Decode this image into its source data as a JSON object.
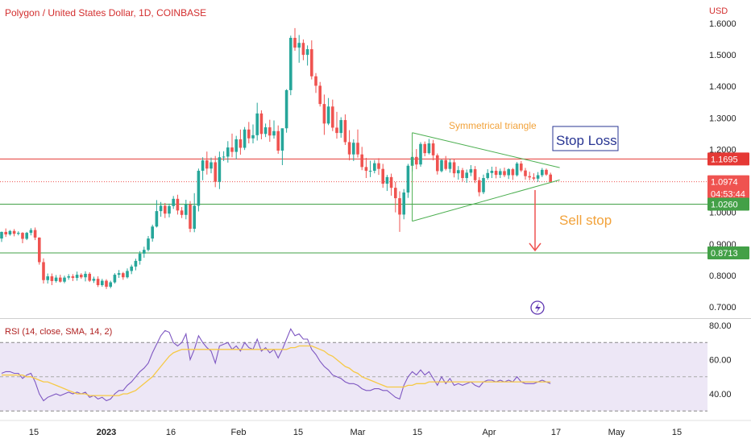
{
  "header": {
    "title": "Polygon / United States Dollar, 1D, COINBASE",
    "currency": "USD"
  },
  "colors": {
    "up": "#26a69a",
    "down": "#ef5350",
    "stop_loss_line": "#e53935",
    "support_line": "#43a047",
    "triangle": "#4caf50",
    "rsi_line": "#7e57c2",
    "rsi_ma": "#f6c945",
    "rsi_band": "#ede7f6",
    "annotation_orange": "#f2a23a",
    "annotation_navy": "#283593"
  },
  "chart_data": [
    {
      "type": "candlestick",
      "title": "Polygon / United States Dollar, 1D, COINBASE",
      "x_ticks": [
        "15",
        "2023",
        "16",
        "Feb",
        "15",
        "Mar",
        "15",
        "Apr",
        "17",
        "May",
        "15"
      ],
      "y_ticks": [
        "1.6000",
        "1.5000",
        "1.4000",
        "1.3000",
        "1.2000",
        "1.1000",
        "1.0000",
        "0.9000",
        "0.8000",
        "0.7000"
      ],
      "ylim": [
        0.69,
        1.63
      ],
      "log_scale": false,
      "grid": false,
      "price_tags": [
        {
          "value": "1.1695",
          "color": "#e53935"
        },
        {
          "value": "1.0974",
          "sub": "04:53:44",
          "color": "#ef5350"
        },
        {
          "value": "1.0260",
          "color": "#43a047"
        },
        {
          "value": "0.8713",
          "color": "#43a047"
        }
      ],
      "levels": [
        {
          "name": "stop-loss-level",
          "value": 1.1695
        },
        {
          "name": "support-level",
          "value": 1.026
        },
        {
          "name": "target-level",
          "value": 0.8713
        }
      ],
      "last_price": 1.0974,
      "annotations": {
        "triangle_label": "Symmetrical triangle",
        "stop_loss_label": "Stop Loss",
        "sell_stop_label": "Sell stop"
      },
      "candles": [
        [
          0.917,
          0.939,
          0.906,
          0.938
        ],
        [
          0.938,
          0.949,
          0.922,
          0.93
        ],
        [
          0.93,
          0.944,
          0.926,
          0.941
        ],
        [
          0.941,
          0.947,
          0.924,
          0.932
        ],
        [
          0.932,
          0.94,
          0.927,
          0.935
        ],
        [
          0.935,
          0.937,
          0.902,
          0.916
        ],
        [
          0.916,
          0.938,
          0.912,
          0.935
        ],
        [
          0.935,
          0.95,
          0.927,
          0.944
        ],
        [
          0.944,
          0.952,
          0.912,
          0.92
        ],
        [
          0.92,
          0.921,
          0.834,
          0.842
        ],
        [
          0.842,
          0.854,
          0.774,
          0.785
        ],
        [
          0.785,
          0.806,
          0.774,
          0.797
        ],
        [
          0.797,
          0.806,
          0.769,
          0.782
        ],
        [
          0.782,
          0.801,
          0.777,
          0.793
        ],
        [
          0.793,
          0.802,
          0.777,
          0.78
        ],
        [
          0.78,
          0.799,
          0.775,
          0.793
        ],
        [
          0.793,
          0.804,
          0.786,
          0.797
        ],
        [
          0.797,
          0.804,
          0.782,
          0.792
        ],
        [
          0.792,
          0.812,
          0.783,
          0.802
        ],
        [
          0.802,
          0.807,
          0.789,
          0.794
        ],
        [
          0.794,
          0.813,
          0.781,
          0.805
        ],
        [
          0.805,
          0.81,
          0.779,
          0.783
        ],
        [
          0.783,
          0.796,
          0.776,
          0.789
        ],
        [
          0.789,
          0.797,
          0.763,
          0.769
        ],
        [
          0.769,
          0.789,
          0.764,
          0.783
        ],
        [
          0.783,
          0.788,
          0.757,
          0.764
        ],
        [
          0.764,
          0.783,
          0.759,
          0.778
        ],
        [
          0.778,
          0.807,
          0.774,
          0.802
        ],
        [
          0.802,
          0.817,
          0.792,
          0.807
        ],
        [
          0.807,
          0.811,
          0.786,
          0.794
        ],
        [
          0.794,
          0.822,
          0.79,
          0.814
        ],
        [
          0.814,
          0.834,
          0.804,
          0.828
        ],
        [
          0.828,
          0.853,
          0.816,
          0.846
        ],
        [
          0.846,
          0.877,
          0.834,
          0.869
        ],
        [
          0.869,
          0.891,
          0.856,
          0.881
        ],
        [
          0.881,
          0.925,
          0.876,
          0.917
        ],
        [
          0.917,
          0.961,
          0.907,
          0.955
        ],
        [
          0.955,
          1.039,
          0.952,
          1.004
        ],
        [
          1.004,
          1.033,
          0.986,
          1.021
        ],
        [
          1.021,
          1.03,
          0.982,
          0.996
        ],
        [
          0.996,
          1.028,
          0.984,
          1.02
        ],
        [
          1.02,
          1.052,
          1.011,
          1.043
        ],
        [
          1.043,
          1.056,
          0.993,
          1.006
        ],
        [
          1.006,
          1.017,
          0.982,
          0.992
        ],
        [
          0.992,
          1.04,
          0.978,
          1.025
        ],
        [
          1.025,
          1.036,
          0.937,
          0.948
        ],
        [
          0.948,
          1.061,
          0.937,
          1.021
        ],
        [
          1.021,
          1.139,
          1.003,
          1.132
        ],
        [
          1.132,
          1.175,
          1.102,
          1.165
        ],
        [
          1.165,
          1.193,
          1.12,
          1.139
        ],
        [
          1.139,
          1.174,
          1.124,
          1.159
        ],
        [
          1.159,
          1.179,
          1.08,
          1.097
        ],
        [
          1.097,
          1.193,
          1.074,
          1.175
        ],
        [
          1.175,
          1.194,
          1.163,
          1.177
        ],
        [
          1.177,
          1.226,
          1.158,
          1.206
        ],
        [
          1.206,
          1.25,
          1.175,
          1.192
        ],
        [
          1.192,
          1.243,
          1.169,
          1.232
        ],
        [
          1.232,
          1.263,
          1.183,
          1.205
        ],
        [
          1.205,
          1.271,
          1.198,
          1.263
        ],
        [
          1.263,
          1.287,
          1.219,
          1.235
        ],
        [
          1.235,
          1.279,
          1.219,
          1.245
        ],
        [
          1.245,
          1.348,
          1.228,
          1.314
        ],
        [
          1.314,
          1.324,
          1.232,
          1.249
        ],
        [
          1.249,
          1.282,
          1.239,
          1.27
        ],
        [
          1.27,
          1.294,
          1.224,
          1.244
        ],
        [
          1.244,
          1.292,
          1.234,
          1.258
        ],
        [
          1.258,
          1.276,
          1.186,
          1.196
        ],
        [
          1.196,
          1.263,
          1.15,
          1.267
        ],
        [
          1.267,
          1.391,
          1.253,
          1.388
        ],
        [
          1.388,
          1.561,
          1.372,
          1.554
        ],
        [
          1.554,
          1.585,
          1.513,
          1.523
        ],
        [
          1.523,
          1.563,
          1.475,
          1.538
        ],
        [
          1.538,
          1.549,
          1.483,
          1.5
        ],
        [
          1.5,
          1.53,
          1.466,
          1.518
        ],
        [
          1.518,
          1.546,
          1.422,
          1.432
        ],
        [
          1.432,
          1.442,
          1.379,
          1.402
        ],
        [
          1.402,
          1.414,
          1.336,
          1.344
        ],
        [
          1.344,
          1.374,
          1.246,
          1.282
        ],
        [
          1.282,
          1.363,
          1.277,
          1.336
        ],
        [
          1.336,
          1.358,
          1.258,
          1.269
        ],
        [
          1.269,
          1.319,
          1.234,
          1.252
        ],
        [
          1.252,
          1.302,
          1.237,
          1.293
        ],
        [
          1.293,
          1.311,
          1.214,
          1.223
        ],
        [
          1.223,
          1.261,
          1.165,
          1.184
        ],
        [
          1.184,
          1.232,
          1.163,
          1.221
        ],
        [
          1.221,
          1.263,
          1.174,
          1.184
        ],
        [
          1.184,
          1.208,
          1.134,
          1.144
        ],
        [
          1.144,
          1.173,
          1.109,
          1.132
        ],
        [
          1.132,
          1.164,
          1.112,
          1.132
        ],
        [
          1.132,
          1.166,
          1.124,
          1.156
        ],
        [
          1.156,
          1.172,
          1.119,
          1.138
        ],
        [
          1.138,
          1.154,
          1.078,
          1.091
        ],
        [
          1.091,
          1.119,
          1.068,
          1.112
        ],
        [
          1.112,
          1.123,
          1.053,
          1.078
        ],
        [
          1.078,
          1.097,
          1.0,
          1.045
        ],
        [
          1.045,
          1.067,
          0.938,
          0.993
        ],
        [
          0.993,
          1.074,
          0.978,
          1.063
        ],
        [
          1.063,
          1.154,
          1.046,
          1.148
        ],
        [
          1.148,
          1.191,
          1.13,
          1.176
        ],
        [
          1.176,
          1.201,
          1.137,
          1.152
        ],
        [
          1.152,
          1.223,
          1.145,
          1.217
        ],
        [
          1.217,
          1.225,
          1.178,
          1.188
        ],
        [
          1.188,
          1.233,
          1.184,
          1.219
        ],
        [
          1.219,
          1.23,
          1.165,
          1.181
        ],
        [
          1.181,
          1.187,
          1.12,
          1.131
        ],
        [
          1.131,
          1.168,
          1.127,
          1.166
        ],
        [
          1.166,
          1.179,
          1.133,
          1.138
        ],
        [
          1.138,
          1.17,
          1.126,
          1.159
        ],
        [
          1.159,
          1.168,
          1.111,
          1.124
        ],
        [
          1.124,
          1.147,
          1.104,
          1.134
        ],
        [
          1.134,
          1.141,
          1.098,
          1.109
        ],
        [
          1.109,
          1.136,
          1.094,
          1.126
        ],
        [
          1.126,
          1.15,
          1.115,
          1.137
        ],
        [
          1.137,
          1.147,
          1.093,
          1.102
        ],
        [
          1.102,
          1.112,
          1.051,
          1.064
        ],
        [
          1.064,
          1.12,
          1.058,
          1.109
        ],
        [
          1.109,
          1.137,
          1.104,
          1.125
        ],
        [
          1.125,
          1.145,
          1.109,
          1.132
        ],
        [
          1.132,
          1.145,
          1.108,
          1.119
        ],
        [
          1.119,
          1.139,
          1.109,
          1.131
        ],
        [
          1.131,
          1.142,
          1.112,
          1.118
        ],
        [
          1.118,
          1.14,
          1.106,
          1.137
        ],
        [
          1.137,
          1.141,
          1.103,
          1.118
        ],
        [
          1.118,
          1.16,
          1.114,
          1.155
        ],
        [
          1.155,
          1.163,
          1.128,
          1.133
        ],
        [
          1.133,
          1.141,
          1.104,
          1.115
        ],
        [
          1.115,
          1.129,
          1.102,
          1.111
        ],
        [
          1.111,
          1.124,
          1.101,
          1.107
        ],
        [
          1.107,
          1.128,
          1.097,
          1.118
        ],
        [
          1.118,
          1.141,
          1.112,
          1.135
        ],
        [
          1.135,
          1.139,
          1.116,
          1.12
        ],
        [
          1.12,
          1.126,
          1.096,
          1.097
        ]
      ]
    },
    {
      "type": "line",
      "title": "RSI (14, close, SMA, 14, 2)",
      "y_ticks": [
        "80.00",
        "60.00",
        "40.00"
      ],
      "ylim": [
        30,
        82
      ],
      "band": [
        30,
        70
      ],
      "midline": 50,
      "series": [
        {
          "values": [
            52,
            53,
            53,
            52,
            52,
            49,
            51,
            52,
            47,
            40,
            36,
            38,
            39,
            40,
            39,
            40,
            41,
            40,
            41,
            40,
            41,
            38,
            39,
            37,
            38,
            36,
            37,
            40,
            42,
            42,
            45,
            47,
            50,
            53,
            55,
            58,
            64,
            69,
            74,
            77,
            76,
            70,
            68,
            70,
            75,
            60,
            66,
            74,
            70,
            67,
            65,
            58,
            68,
            69,
            70,
            66,
            68,
            65,
            70,
            67,
            66,
            72,
            65,
            67,
            64,
            66,
            61,
            66,
            72,
            78,
            74,
            75,
            72,
            72,
            66,
            63,
            59,
            56,
            54,
            51,
            50,
            49,
            47,
            46,
            46,
            45,
            43,
            42,
            42,
            43,
            43,
            42,
            42,
            40,
            38,
            37,
            45,
            50,
            53,
            51,
            54,
            51,
            53,
            49,
            45,
            50,
            46,
            49,
            45,
            46,
            45,
            46,
            47,
            45,
            44,
            47,
            48,
            48,
            47,
            48,
            47,
            48,
            47,
            50,
            47,
            46,
            46,
            46,
            47,
            48,
            47,
            46
          ]
        },
        {
          "values": [
            51,
            51,
            51,
            51,
            51,
            51,
            50,
            50,
            49,
            48,
            47,
            47,
            46,
            45,
            44,
            43,
            42,
            41,
            40,
            40,
            40,
            39,
            39,
            39,
            39,
            39,
            39,
            39,
            39,
            40,
            40,
            41,
            42,
            44,
            46,
            48,
            50,
            53,
            56,
            59,
            62,
            64,
            65,
            66,
            66,
            66,
            66,
            66,
            66,
            66,
            66,
            66,
            66,
            66,
            66,
            66,
            66,
            66,
            66,
            66,
            66,
            66,
            66,
            66,
            66,
            66,
            66,
            66,
            66,
            67,
            67,
            68,
            68,
            68,
            68,
            67,
            66,
            65,
            63,
            62,
            60,
            58,
            56,
            55,
            53,
            52,
            50,
            49,
            48,
            47,
            46,
            45,
            44,
            44,
            44,
            44,
            44,
            45,
            45,
            46,
            46,
            46,
            47,
            47,
            47,
            47,
            47,
            47,
            47,
            47,
            47,
            47,
            47,
            47,
            47,
            47,
            47,
            47,
            47,
            47,
            47,
            47,
            47,
            47,
            47,
            47,
            47,
            47,
            47,
            47,
            47,
            47
          ]
        }
      ],
      "x_ticks": [
        "15",
        "2023",
        "16",
        "Feb",
        "15",
        "Mar",
        "15",
        "Apr",
        "17",
        "May",
        "15"
      ]
    }
  ]
}
